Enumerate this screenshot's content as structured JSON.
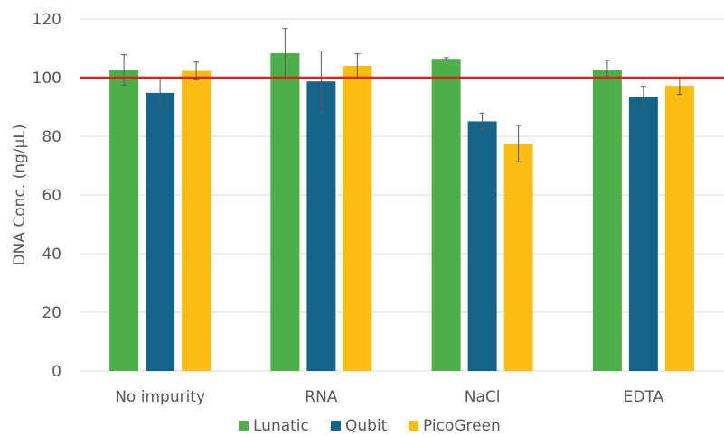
{
  "chart_data": {
    "type": "bar",
    "title": "",
    "xlabel": "",
    "ylabel": "DNA Conc. (ng/µL)",
    "ylim": [
      0,
      120
    ],
    "yticks": [
      0,
      20,
      40,
      60,
      80,
      100,
      120
    ],
    "grid": true,
    "legend_position": "bottom",
    "reference_line": {
      "value": 100,
      "color": "#e21f1f"
    },
    "categories": [
      "No impurity",
      "RNA",
      "NaCl",
      "EDTA"
    ],
    "series": [
      {
        "name": "Lunatic",
        "color": "#4daf4a",
        "values": [
          102.6,
          108.3,
          106.4,
          102.7
        ],
        "errors": [
          5.2,
          8.4,
          0.4,
          3.2
        ]
      },
      {
        "name": "Qubit",
        "color": "#136489",
        "values": [
          94.8,
          98.7,
          85.1,
          93.4
        ],
        "errors": [
          4.8,
          10.4,
          2.8,
          3.6
        ]
      },
      {
        "name": "PicoGreen",
        "color": "#fbbd12",
        "values": [
          102.3,
          104.0,
          77.5,
          97.2
        ],
        "errors": [
          3.0,
          4.1,
          6.2,
          2.9
        ]
      }
    ]
  }
}
